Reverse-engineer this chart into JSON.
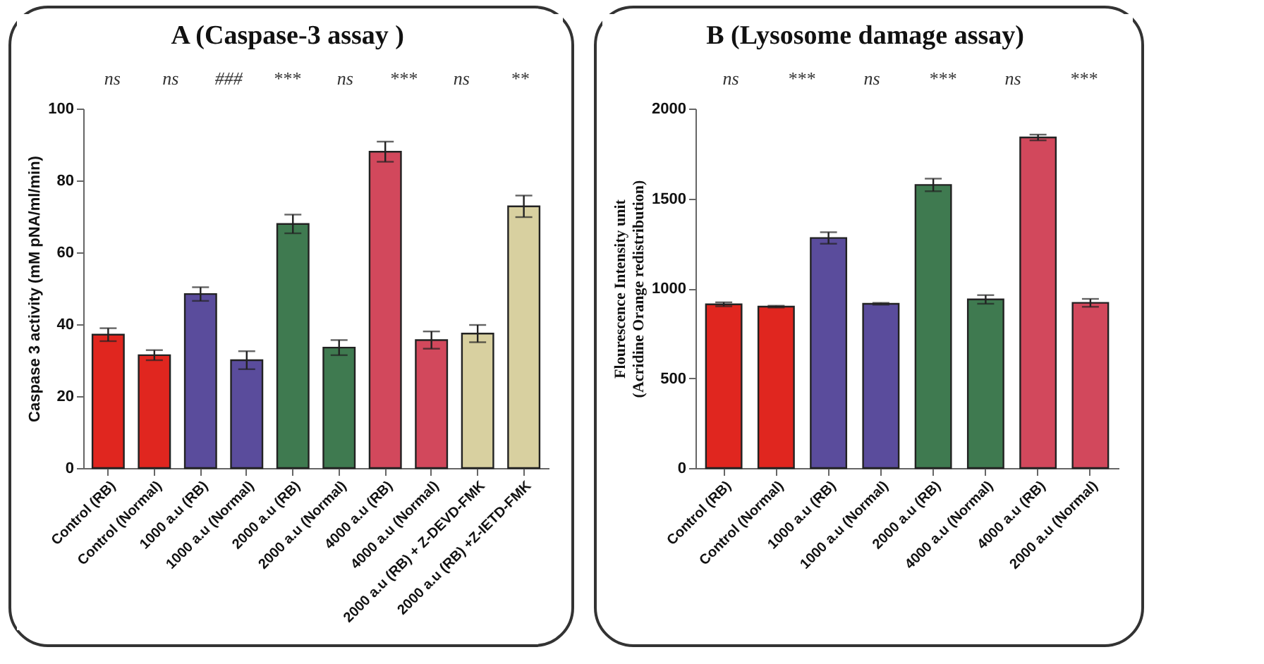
{
  "chart_data": [
    {
      "type": "bar",
      "title": "A (Caspase-3 assay )",
      "ylabel": "Caspase 3 activity (mM pNA/ml/min)",
      "categories": [
        "Control (RB)",
        "Control (Normal)",
        "1000 a.u (RB)",
        "1000 a.u (Normal)",
        "2000 a.u (RB)",
        "2000 a.u (Normal)",
        "4000 a.u (RB)",
        "4000 a.u (Normal)",
        "2000 a.u (RB) + Z-DEVD-FMK",
        "2000 a.u (RB) +Z-IETD-FMK"
      ],
      "values": [
        37.1,
        31.4,
        48.4,
        30.0,
        67.9,
        33.5,
        88.0,
        35.6,
        37.4,
        72.8
      ],
      "errors": [
        1.8,
        1.4,
        1.9,
        2.5,
        2.6,
        2.1,
        2.8,
        2.4,
        2.4,
        3.0
      ],
      "colors": [
        "#e0261f",
        "#e0261f",
        "#5a4c9c",
        "#5a4c9c",
        "#3f7a50",
        "#3f7a50",
        "#d2485c",
        "#d2485c",
        "#d8d0a0",
        "#d8d0a0"
      ],
      "ylim": [
        0,
        100
      ],
      "yticks": [
        0,
        20,
        40,
        60,
        80,
        100
      ],
      "grid": false,
      "annotations": [
        "ns",
        "ns",
        "###",
        "***",
        "ns",
        "***",
        "ns",
        "**"
      ]
    },
    {
      "type": "bar",
      "title": "B (Lysosome damage assay)",
      "ylabel": "Flourescence Intensity unit\n(Acridine Orange redistribution)",
      "categories": [
        "Control (RB)",
        "Control (Normal)",
        "1000 a.u (RB)",
        "1000 a.u (Normal)",
        "2000 a.u (RB)",
        "4000 a.u (Normal)",
        "4000 a.u (RB)",
        "2000 a.u (Normal)"
      ],
      "values": [
        911,
        898,
        1280,
        914,
        1575,
        938,
        1839,
        919
      ],
      "errors": [
        11,
        5,
        32,
        5,
        35,
        24,
        16,
        22
      ],
      "colors": [
        "#e0261f",
        "#e0261f",
        "#5a4c9c",
        "#5a4c9c",
        "#3f7a50",
        "#3f7a50",
        "#d2485c",
        "#d2485c"
      ],
      "ylim": [
        0,
        2000
      ],
      "yticks": [
        0,
        500,
        1000,
        1500,
        2000
      ],
      "grid": false,
      "annotations": [
        "ns",
        "***",
        "ns",
        "***",
        "ns",
        "***"
      ]
    }
  ]
}
